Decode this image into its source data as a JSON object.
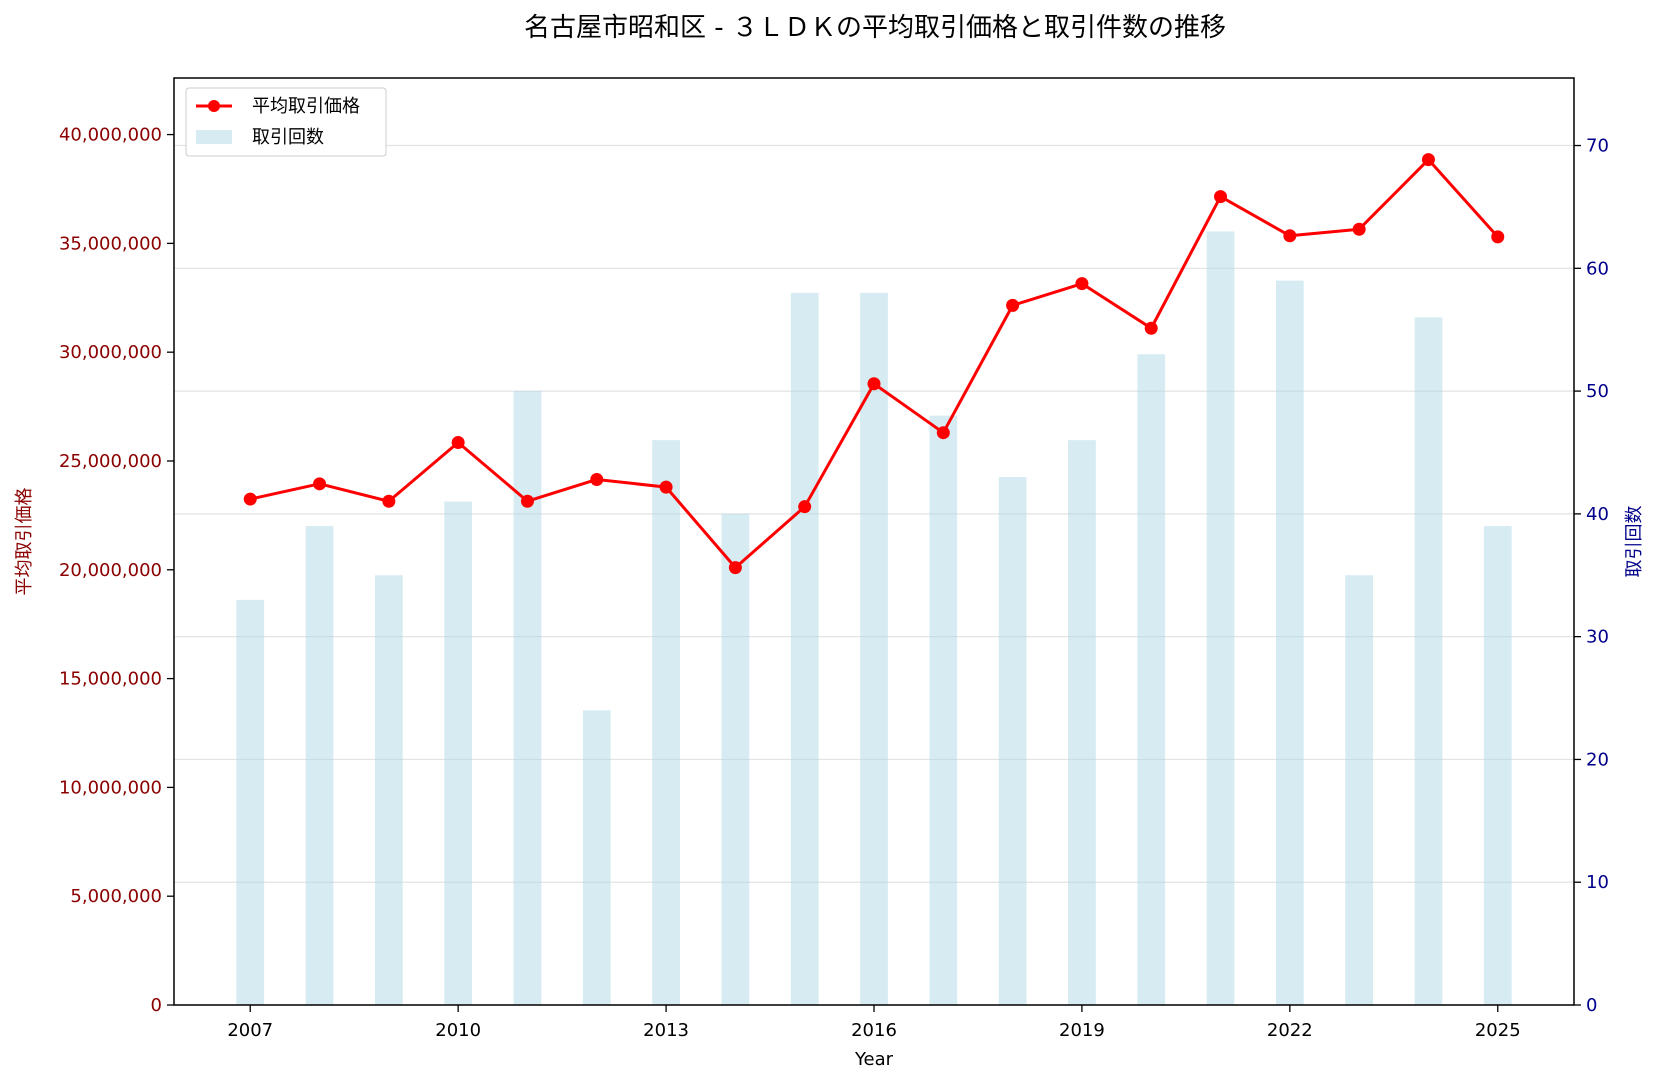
{
  "chart_data": {
    "type": "bar+line",
    "title": "名古屋市昭和区 - ３ＬＤＫの平均取引価格と取引件数の推移",
    "xlabel": "Year",
    "ylabel_left": "平均取引価格",
    "ylabel_right": "取引回数",
    "x": [
      2007,
      2008,
      2009,
      2010,
      2011,
      2012,
      2013,
      2014,
      2015,
      2016,
      2017,
      2018,
      2019,
      2020,
      2021,
      2022,
      2023,
      2024,
      2025
    ],
    "x_ticks": [
      "2007",
      "2010",
      "2013",
      "2016",
      "2019",
      "2022",
      "2025"
    ],
    "ylim_left": [
      0,
      42600000
    ],
    "yticks_left": [
      "0",
      "5,000,000",
      "10,000,000",
      "15,000,000",
      "20,000,000",
      "25,000,000",
      "30,000,000",
      "35,000,000",
      "40,000,000"
    ],
    "ylim_right": [
      0,
      75.5
    ],
    "yticks_right": [
      "0",
      "10",
      "20",
      "30",
      "40",
      "50",
      "60",
      "70"
    ],
    "grid": "horizontal (right axis)",
    "legend_position": "top-left",
    "series": [
      {
        "name": "平均取引価格",
        "type": "line",
        "axis": "left",
        "color": "#ff0000",
        "values": [
          23250000,
          23950000,
          23150000,
          25850000,
          23150000,
          24150000,
          23800000,
          20100000,
          22900000,
          28550000,
          26300000,
          32150000,
          33150000,
          31100000,
          37150000,
          35350000,
          35650000,
          38850000,
          35300000
        ]
      },
      {
        "name": "取引回数",
        "type": "bar",
        "axis": "right",
        "color": "#add8e6",
        "values": [
          33,
          39,
          35,
          41,
          50,
          24,
          46,
          40,
          58,
          58,
          48,
          43,
          46,
          53,
          63,
          59,
          35,
          56,
          39
        ]
      }
    ]
  }
}
